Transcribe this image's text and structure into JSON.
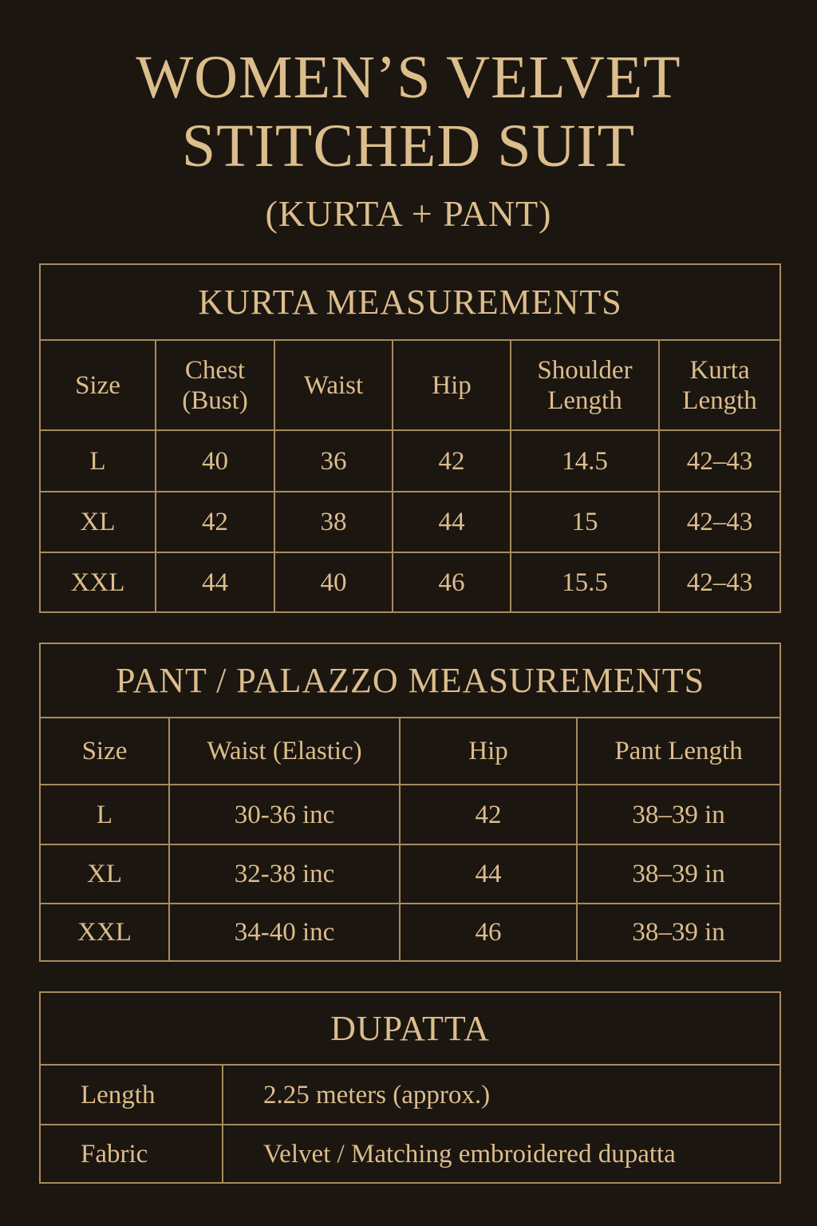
{
  "title": {
    "line1": "WOMEN’S VELVET",
    "line2": "STITCHED SUIT",
    "subtitle": "(KURTA + PANT)"
  },
  "colors": {
    "background": "#1c1611",
    "text": "#dcbd8c",
    "border": "#a78b5f"
  },
  "kurta": {
    "heading": "KURTA MEASUREMENTS",
    "columns": [
      [
        "Size",
        ""
      ],
      [
        "Chest",
        "(Bust)"
      ],
      [
        "Waist",
        ""
      ],
      [
        "Hip",
        ""
      ],
      [
        "Shoulder",
        "Length"
      ],
      [
        "Kurta",
        "Length"
      ]
    ],
    "rows": [
      [
        "L",
        "40",
        "36",
        "42",
        "14.5",
        "42–43"
      ],
      [
        "XL",
        "42",
        "38",
        "44",
        "15",
        "42–43"
      ],
      [
        "XXL",
        "44",
        "40",
        "46",
        "15.5",
        "42–43"
      ]
    ]
  },
  "pant": {
    "heading": "PANT / PALAZZO MEASUREMENTS",
    "columns": [
      "Size",
      "Waist (Elastic)",
      "Hip",
      "Pant Length"
    ],
    "rows": [
      [
        "L",
        "30-36 inc",
        "42",
        "38–39 in"
      ],
      [
        "XL",
        "32-38 inc",
        "44",
        "38–39 in"
      ],
      [
        "XXL",
        "34-40 inc",
        "46",
        "38–39 in"
      ]
    ]
  },
  "dupatta": {
    "heading": "DUPATTA",
    "rows": [
      [
        "Length",
        "2.25 meters (approx.)"
      ],
      [
        "Fabric",
        "Velvet / Matching embroidered dupatta"
      ]
    ]
  }
}
